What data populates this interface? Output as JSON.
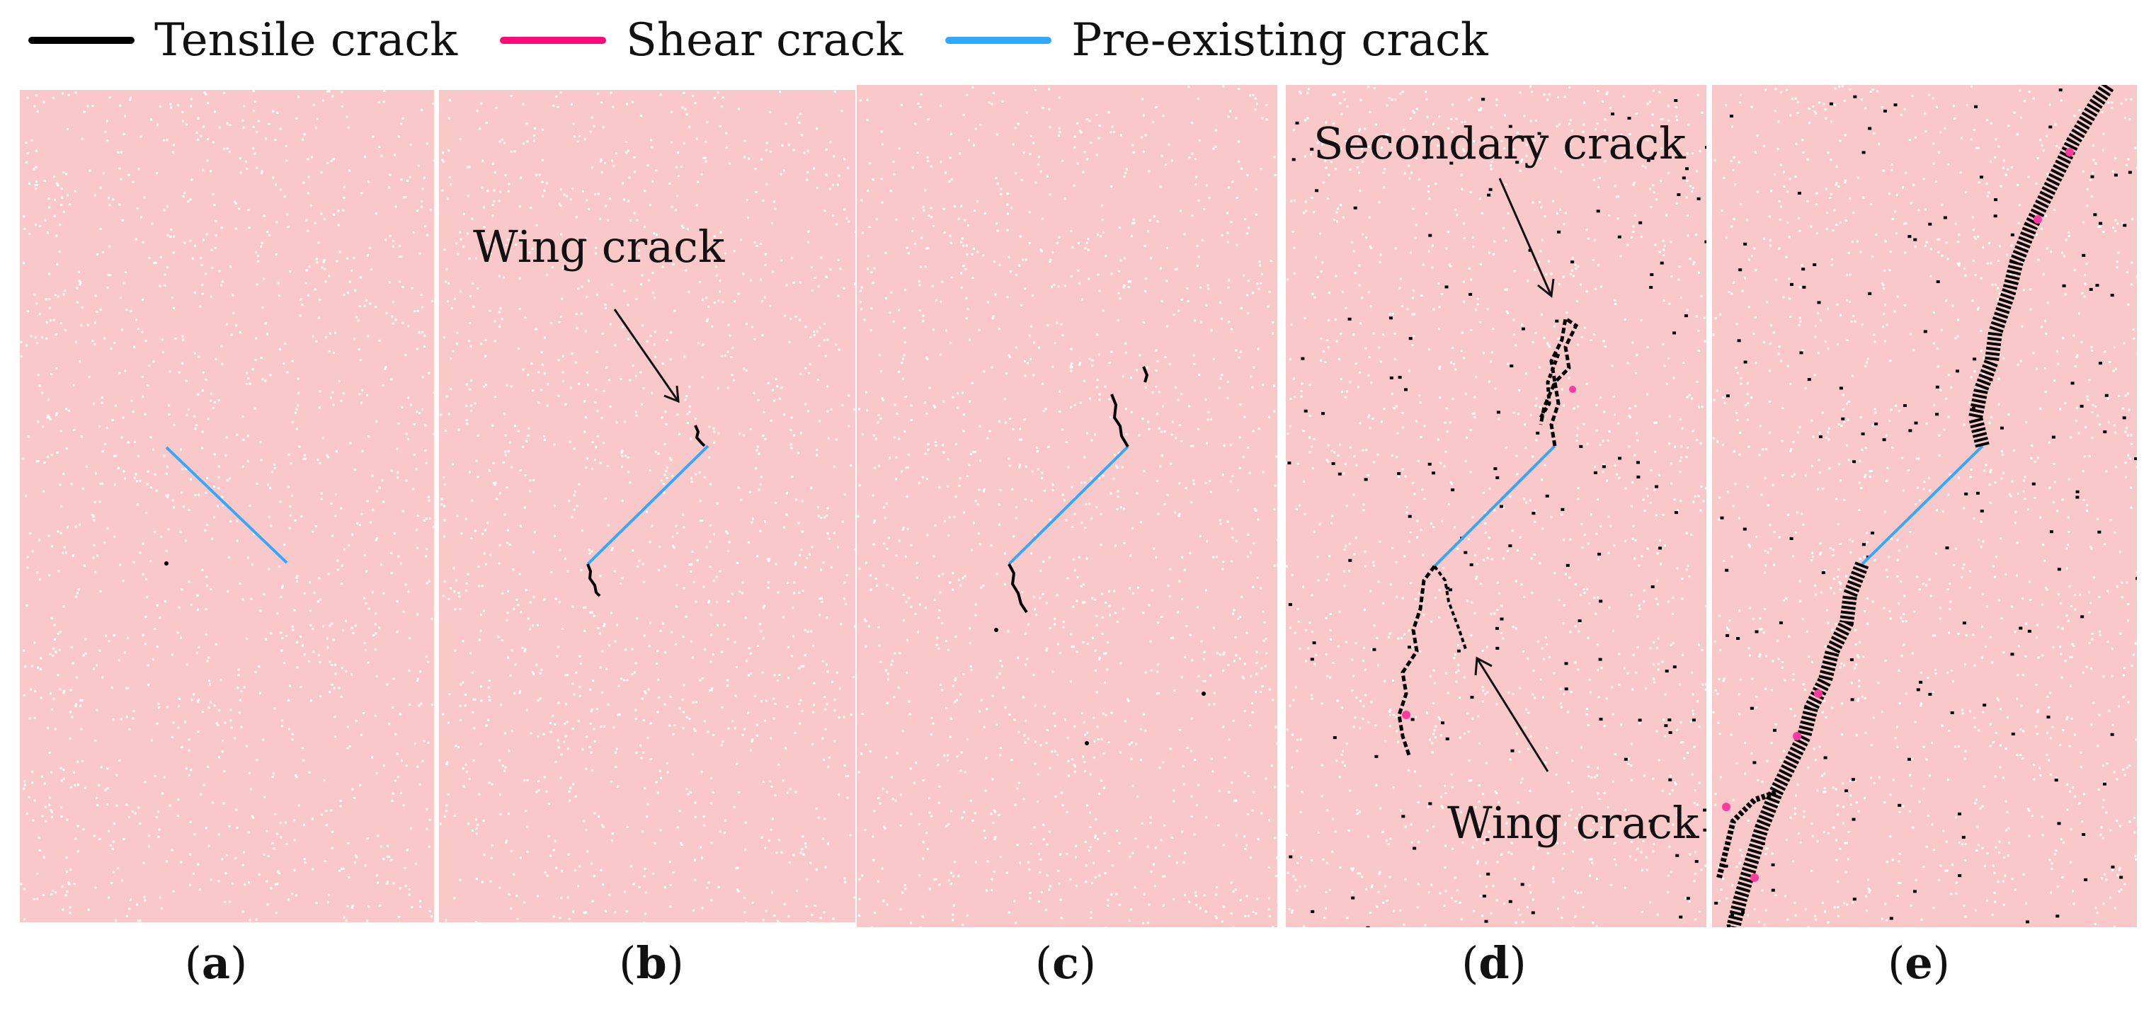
{
  "legend": {
    "tensile": {
      "label": "Tensile crack",
      "color": "#000000"
    },
    "shear": {
      "label": "Shear crack",
      "color": "#ff0a78"
    },
    "preexisting": {
      "label": "Pre-existing crack",
      "color": "#33a8ff"
    }
  },
  "panels": [
    {
      "id": "a",
      "label": "a"
    },
    {
      "id": "b",
      "label": "b",
      "annotation": "Wing crack"
    },
    {
      "id": "c",
      "label": "c"
    },
    {
      "id": "d",
      "label": "d",
      "annotations": [
        "Secondary crack",
        "Wing crack"
      ]
    },
    {
      "id": "e",
      "label": "e"
    }
  ],
  "colors": {
    "background": "#f9c9c9",
    "specks": "#ffffff"
  }
}
